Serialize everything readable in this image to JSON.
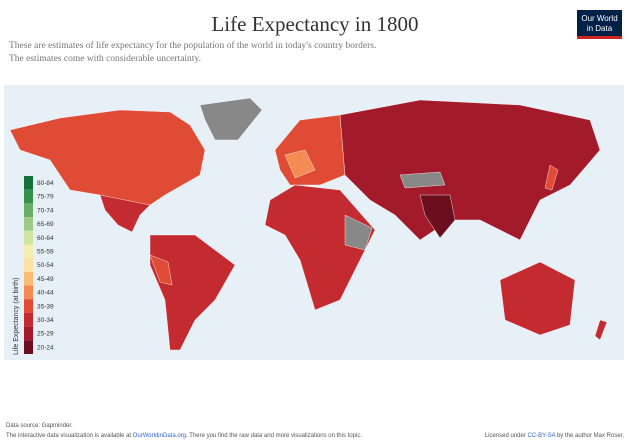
{
  "header": {
    "title": "Life Expectancy in 1800",
    "subtitle": [
      "These are estimates of life expectancy for the population of the world in today's country borders.",
      "The estimates come with considerable uncertainty."
    ],
    "logo": [
      "Our World",
      "in Data"
    ]
  },
  "legend": {
    "title": "Life Expectancy (at birth)",
    "bins": [
      {
        "label": "80-84",
        "color": "#16703a"
      },
      {
        "label": "75-79",
        "color": "#33914e"
      },
      {
        "label": "70-74",
        "color": "#66ad66"
      },
      {
        "label": "65-69",
        "color": "#9dcb85"
      },
      {
        "label": "60-64",
        "color": "#cfe6a0"
      },
      {
        "label": "55-59",
        "color": "#f4efb0"
      },
      {
        "label": "50-54",
        "color": "#fde2a2"
      },
      {
        "label": "45-49",
        "color": "#fbbb72"
      },
      {
        "label": "40-44",
        "color": "#f38b52"
      },
      {
        "label": "35-39",
        "color": "#e04b36"
      },
      {
        "label": "30-34",
        "color": "#c42b30"
      },
      {
        "label": "25-29",
        "color": "#a31b2b"
      },
      {
        "label": "20-24",
        "color": "#6b0e1e"
      }
    ]
  },
  "footer": {
    "source": "Data source: Gapminder.",
    "note": [
      "The interactive data visualization is available at ",
      "OurWorldinData.org",
      ". There you find the raw data and more visualizations on this topic."
    ],
    "license": [
      "Licensed under ",
      "CC-BY-SA",
      " by the author Max Roser."
    ]
  }
}
